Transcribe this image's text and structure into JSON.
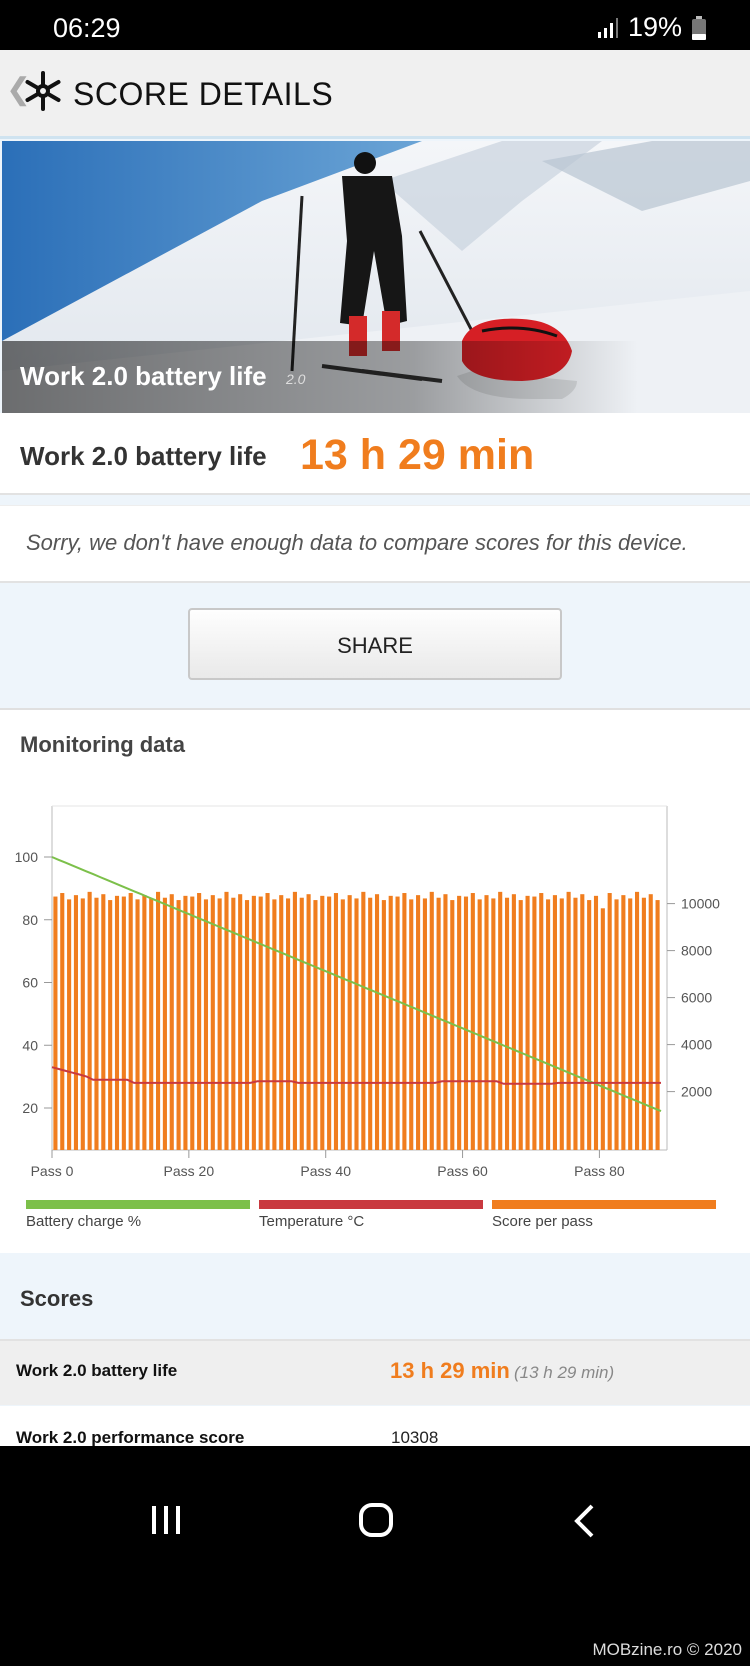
{
  "status": {
    "time": "06:29",
    "battery": "19%"
  },
  "appbar": {
    "title": "SCORE DETAILS"
  },
  "hero": {
    "title": "Work 2.0 battery life",
    "version": "2.0"
  },
  "score": {
    "label": "Work 2.0 battery life",
    "value": "13 h 29 min"
  },
  "notice": "Sorry, we don't have enough data to compare scores for this device.",
  "share_label": "SHARE",
  "monitoring": {
    "title": "Monitoring data"
  },
  "chart_data": {
    "type": "bar",
    "x_ticks": [
      "Pass 0",
      "Pass 20",
      "Pass 40",
      "Pass 60",
      "Pass 80"
    ],
    "passes": 89,
    "left_axis": {
      "ticks": [
        100,
        80,
        60,
        40,
        20
      ],
      "ylim": [
        0,
        100
      ]
    },
    "right_axis": {
      "ticks": [
        10000,
        8000,
        6000,
        4000,
        2000
      ],
      "ylim": [
        0,
        11000
      ]
    },
    "score_per_pass_approx": 10300,
    "battery_charge": {
      "start": 100,
      "end": 19
    },
    "temperature": {
      "start": 33,
      "steady": 28,
      "end": 28
    },
    "legend": [
      {
        "name": "Battery charge %",
        "color": "#7cc04a"
      },
      {
        "name": "Temperature °C",
        "color": "#c9393f"
      },
      {
        "name": "Score per pass",
        "color": "#f07d1e"
      }
    ]
  },
  "scores": {
    "title": "Scores",
    "rows": [
      {
        "label": "Work 2.0 battery life",
        "value": "13 h 29 min",
        "sub": "(13 h 29 min)"
      },
      {
        "label": "Work 2.0 performance score",
        "value": "10308"
      }
    ]
  },
  "credit": "MOBzine.ro © 2020"
}
